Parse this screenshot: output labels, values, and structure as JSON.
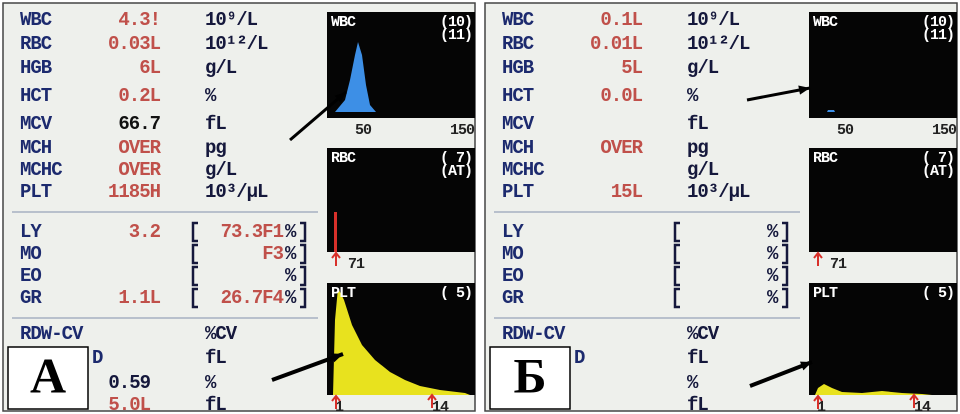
{
  "panels": [
    {
      "label": "А",
      "params": [
        {
          "name": "WBC",
          "value": "4.3!",
          "unit": "10⁹/L"
        },
        {
          "name": "RBC",
          "value": "0.03L",
          "unit": "10¹²/L"
        },
        {
          "name": "HGB",
          "value": "6L",
          "unit": "g/L"
        },
        {
          "name": "HCT",
          "value": "0.2L",
          "unit": "%"
        },
        {
          "name": "MCV",
          "value": "66.7",
          "unit": "fL"
        },
        {
          "name": "MCH",
          "value": "OVER",
          "unit": "pg"
        },
        {
          "name": "MCHC",
          "value": "OVER",
          "unit": "g/L"
        },
        {
          "name": "PLT",
          "value": "1185H",
          "unit": "10³/μL"
        }
      ],
      "diff": [
        {
          "name": "LY",
          "value": "3.2",
          "percent": "73.3F1",
          "unit": "%"
        },
        {
          "name": "MO",
          "percent": "F3",
          "unit": "%"
        },
        {
          "name": "EO",
          "unit": "%"
        },
        {
          "name": "GR",
          "value": "1.1L",
          "percent": "26.7F4",
          "unit": "%"
        }
      ],
      "rdw": [
        {
          "name": "RDW-CV",
          "unit": "%CV"
        },
        {
          "name": "D",
          "unit": "fL"
        },
        {
          "value": "0.59",
          "unit": "%"
        },
        {
          "value": "5.0L",
          "unit": "fL"
        }
      ],
      "histograms": [
        {
          "title": "WBC",
          "flags": [
            "(10)",
            "(11)"
          ],
          "axis_labels": [
            "50",
            "150"
          ]
        },
        {
          "title": "RBC",
          "flags": [
            "( 7)",
            "(AT)"
          ],
          "axis_labels": [
            "71"
          ]
        },
        {
          "title": "PLT",
          "flags": [
            "( 5)"
          ],
          "axis_labels": [
            "1",
            "14"
          ]
        }
      ]
    },
    {
      "label": "Б",
      "params": [
        {
          "name": "WBC",
          "value": "0.1L",
          "unit": "10⁹/L"
        },
        {
          "name": "RBC",
          "value": "0.01L",
          "unit": "10¹²/L"
        },
        {
          "name": "HGB",
          "value": "5L",
          "unit": "g/L"
        },
        {
          "name": "HCT",
          "value": "0.0L",
          "unit": "%"
        },
        {
          "name": "MCV",
          "unit": "fL"
        },
        {
          "name": "MCH",
          "value": "OVER",
          "unit": "pg"
        },
        {
          "name": "MCHC",
          "unit": "g/L"
        },
        {
          "name": "PLT",
          "value": "15L",
          "unit": "10³/μL"
        }
      ],
      "diff": [
        {
          "name": "LY",
          "unit": "%"
        },
        {
          "name": "MO",
          "unit": "%"
        },
        {
          "name": "EO",
          "unit": "%"
        },
        {
          "name": "GR",
          "unit": "%"
        }
      ],
      "rdw": [
        {
          "name": "RDW-CV",
          "unit": "%CV"
        },
        {
          "name": "D",
          "unit": "fL"
        },
        {
          "unit": "%"
        },
        {
          "unit": "fL"
        }
      ],
      "histograms": [
        {
          "title": "WBC",
          "flags": [
            "(10)",
            "(11)"
          ],
          "axis_labels": [
            "50",
            "150"
          ]
        },
        {
          "title": "RBC",
          "flags": [
            "( 7)",
            "(AT)"
          ],
          "axis_labels": [
            "71"
          ]
        },
        {
          "title": "PLT",
          "flags": [
            "( 5)"
          ],
          "axis_labels": [
            "1",
            "14"
          ]
        }
      ]
    }
  ]
}
